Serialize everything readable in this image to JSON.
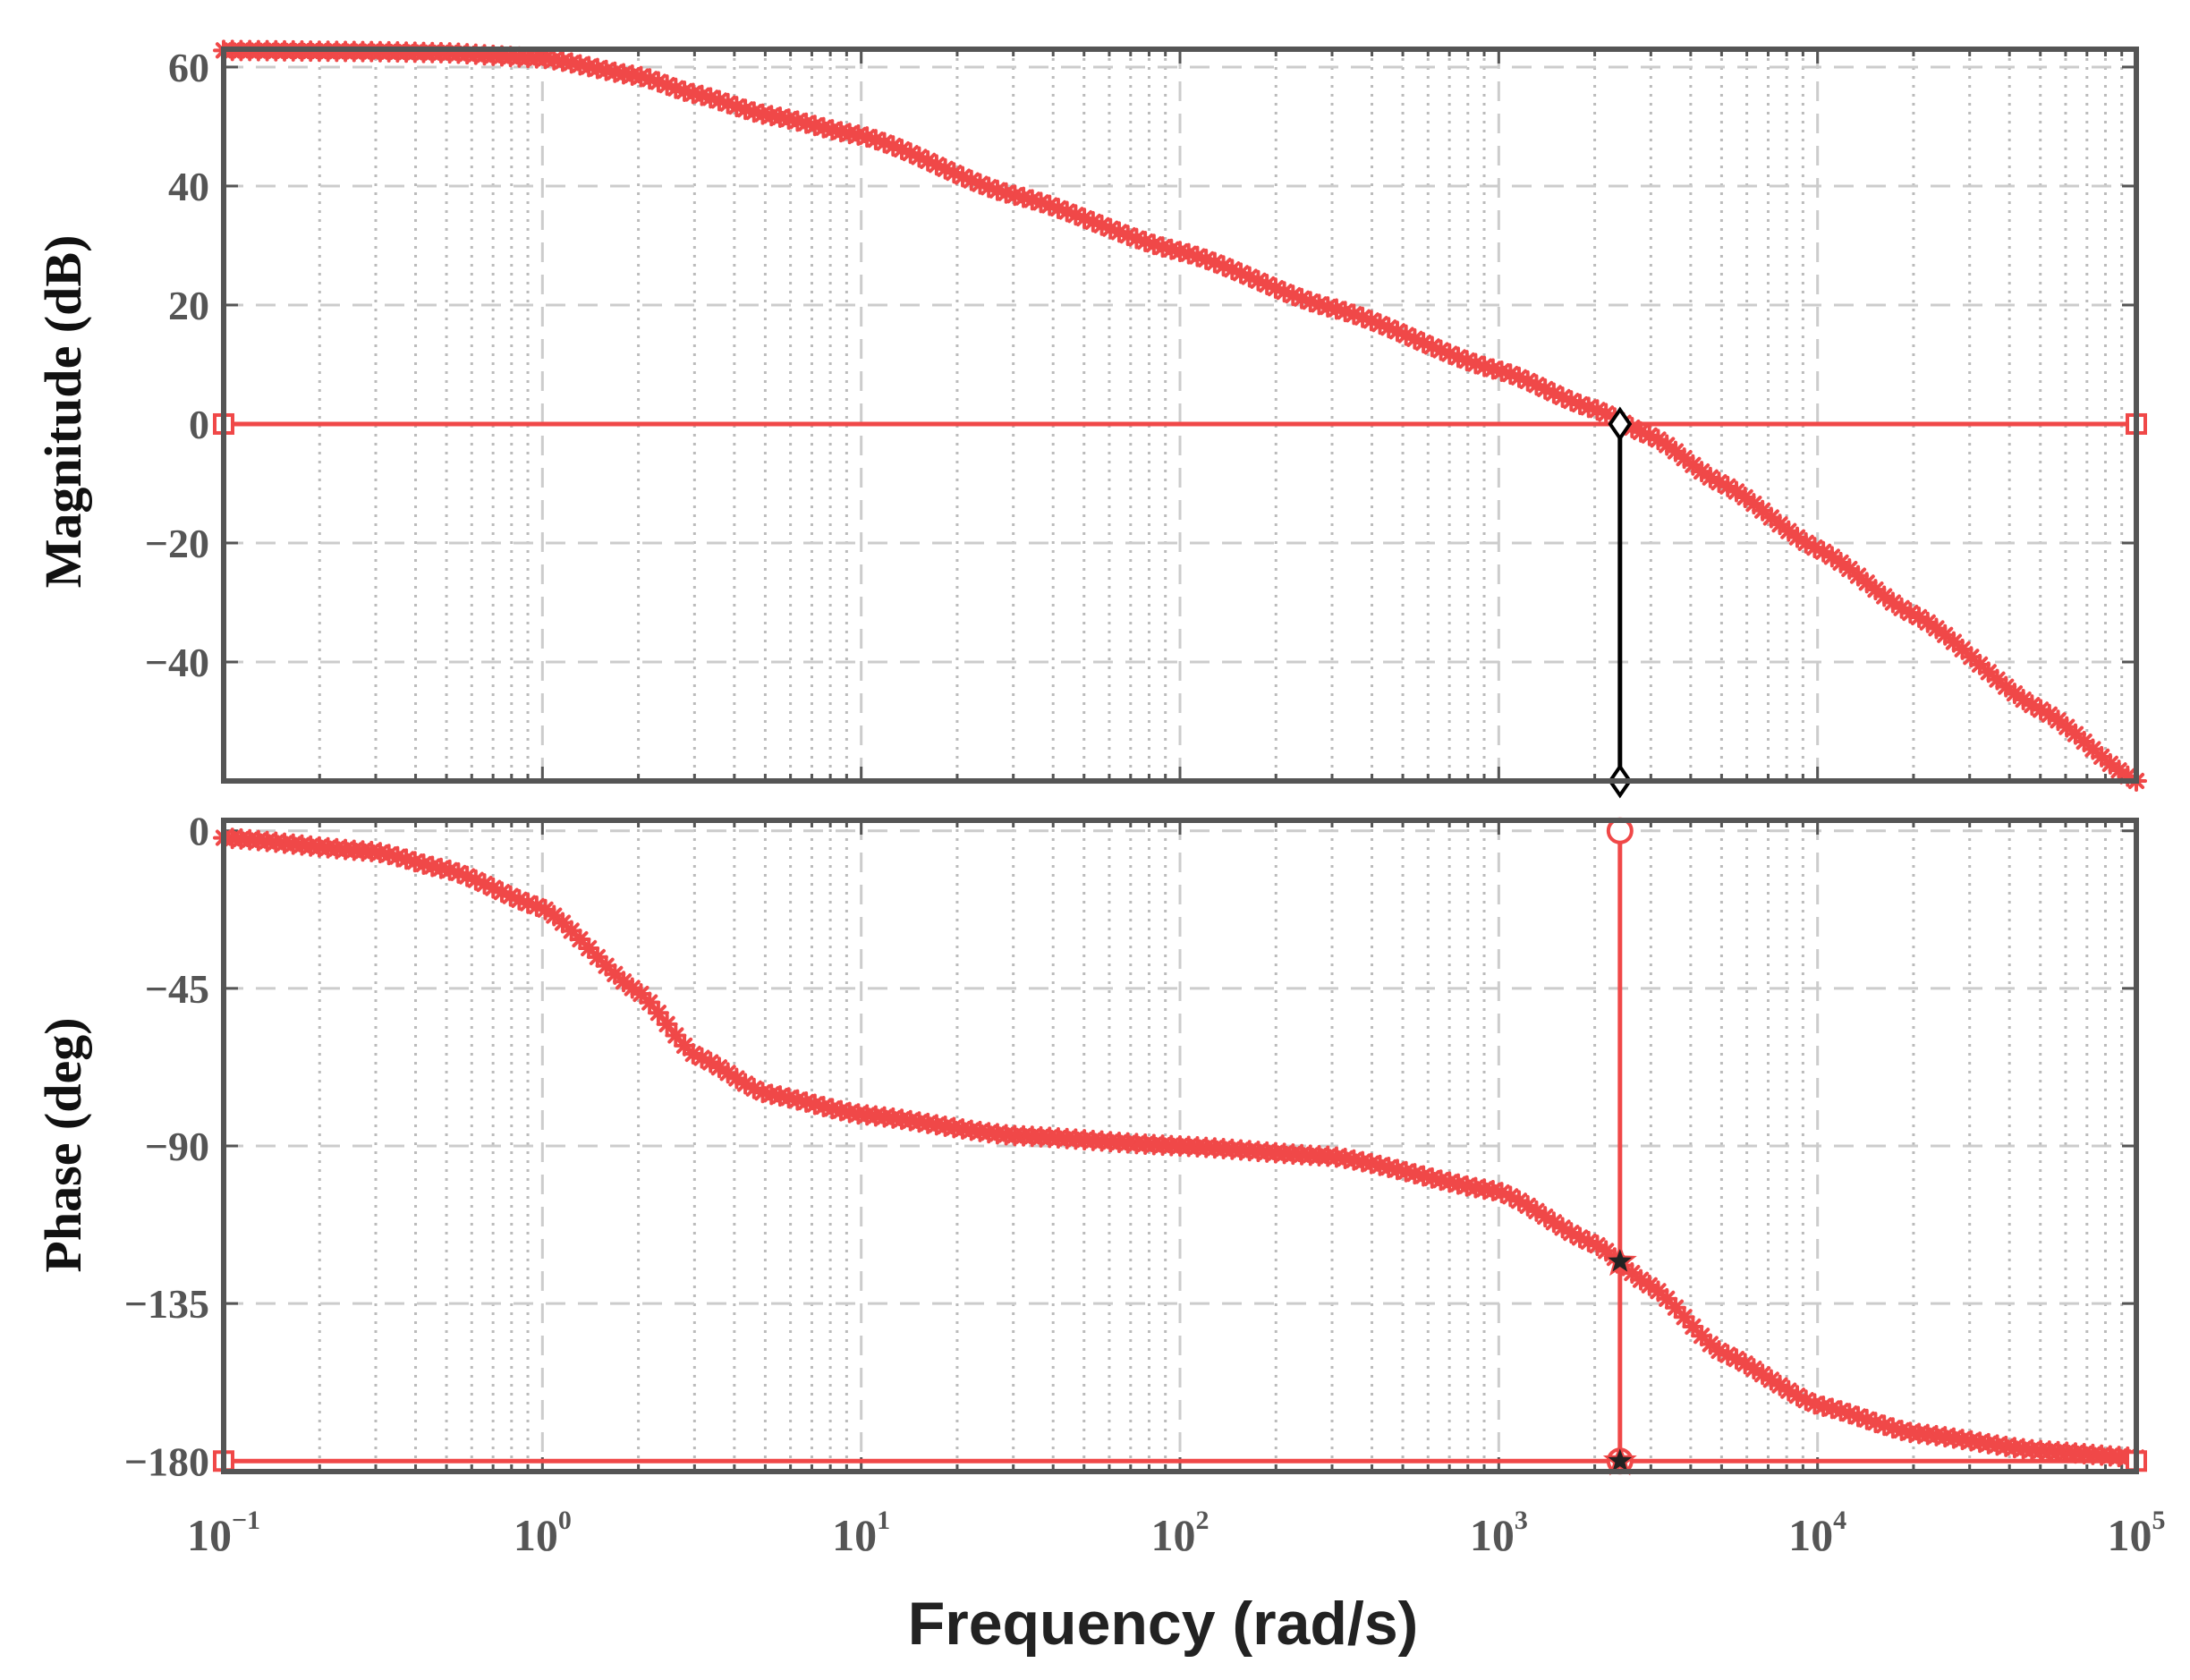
{
  "chart_data": {
    "type": "line",
    "xscale": "log",
    "xlim": [
      0.1,
      100000
    ],
    "xlabel": "Frequency  (rad/s)",
    "x_tick_labels": [
      {
        "base": "10",
        "exp": "−1"
      },
      {
        "base": "10",
        "exp": "0"
      },
      {
        "base": "10",
        "exp": "1"
      },
      {
        "base": "10",
        "exp": "2"
      },
      {
        "base": "10",
        "exp": "3"
      },
      {
        "base": "10",
        "exp": "4"
      },
      {
        "base": "10",
        "exp": "5"
      }
    ],
    "grid": true,
    "subplots": [
      {
        "id": "magnitude",
        "ylabel": "Magnitude (dB)",
        "ylim": [
          -60,
          63
        ],
        "yticks": [
          60,
          40,
          20,
          0,
          -20,
          -40
        ],
        "ytick_labels": [
          "60",
          "40",
          "20",
          "0",
          "−20",
          "−40"
        ],
        "series": [
          {
            "marker": "asterisk",
            "color": "#f04848",
            "x": [
              0.1,
              0.3,
              0.5,
              1,
              2,
              3,
              5,
              10,
              30,
              100,
              300,
              1000,
              2000,
              3000,
              5000,
              10000,
              20000,
              50000,
              100000
            ],
            "y": [
              62.8,
              62.6,
              62.4,
              61.5,
              58.5,
              55.5,
              52,
              48.5,
              38.5,
              29,
              19.5,
              9,
              2.5,
              -2,
              -10,
              -21,
              -32,
              -48,
              -60
            ]
          }
        ],
        "reference_lines": [
          {
            "kind": "horizontal",
            "y": 0,
            "color": "#f04848",
            "end_marker": "square"
          },
          {
            "kind": "vertical",
            "x": 2400,
            "y_from": 0,
            "y_to": -60,
            "color": "#000000",
            "end_marker": "diamond"
          }
        ]
      },
      {
        "id": "phase",
        "ylabel": "Phase (deg)",
        "ylim": [
          -183,
          3
        ],
        "yticks": [
          0,
          -45,
          -90,
          -135,
          -180
        ],
        "ytick_labels": [
          "0",
          "−45",
          "−90",
          "−135",
          "−180"
        ],
        "series": [
          {
            "marker": "asterisk",
            "color": "#f04848",
            "x": [
              0.1,
              0.3,
              0.5,
              1,
              2,
              3,
              5,
              10,
              30,
              100,
              300,
              1000,
              2000,
              3000,
              5000,
              10000,
              20000,
              50000,
              100000
            ],
            "y": [
              -2,
              -6,
              -11,
              -22,
              -46,
              -64,
              -75,
              -81,
              -87,
              -90,
              -93,
              -103,
              -118,
              -130,
              -149,
              -164,
              -172,
              -177,
              -179
            ]
          }
        ],
        "reference_lines": [
          {
            "kind": "horizontal",
            "y": -180,
            "color": "#f04848",
            "end_marker": "square"
          },
          {
            "kind": "vertical",
            "x": 2400,
            "y_from": 0,
            "y_to": -180,
            "color": "#f04848",
            "end_marker": "circle"
          }
        ],
        "highlight_points": [
          {
            "x": 2400,
            "y": -123,
            "marker": "star",
            "color": "#222222"
          },
          {
            "x": 2400,
            "y": -180,
            "marker": "star",
            "color": "#222222"
          }
        ]
      }
    ]
  }
}
